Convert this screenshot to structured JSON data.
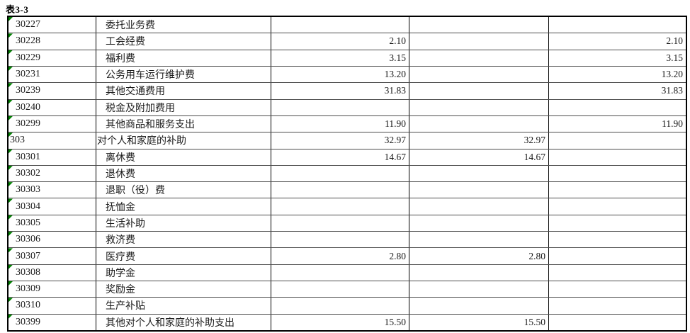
{
  "page": {
    "title": "表3-3"
  },
  "colors": {
    "outer_border": "#000000",
    "inner_row_line": "#4d4d4d",
    "error_indicator_green": "#008000",
    "background": "#ffffff"
  },
  "icons": {
    "error_indicator": "cell-error-indicator-triangle"
  },
  "table": {
    "column_roles": [
      "科目编码",
      "科目名称",
      "金额1",
      "金额2",
      "金额3"
    ],
    "rows": [
      {
        "code": "30227",
        "label": "委托业务费",
        "indent": 1,
        "v1": "",
        "v2": "",
        "v3": ""
      },
      {
        "code": "30228",
        "label": "工会经费",
        "indent": 1,
        "v1": "2.10",
        "v2": "",
        "v3": "2.10"
      },
      {
        "code": "30229",
        "label": "福利费",
        "indent": 1,
        "v1": "3.15",
        "v2": "",
        "v3": "3.15"
      },
      {
        "code": "30231",
        "label": "公务用车运行维护费",
        "indent": 1,
        "v1": "13.20",
        "v2": "",
        "v3": "13.20"
      },
      {
        "code": "30239",
        "label": "其他交通费用",
        "indent": 1,
        "v1": "31.83",
        "v2": "",
        "v3": "31.83"
      },
      {
        "code": "30240",
        "label": "税金及附加费用",
        "indent": 1,
        "v1": "",
        "v2": "",
        "v3": ""
      },
      {
        "code": "30299",
        "label": "其他商品和服务支出",
        "indent": 1,
        "v1": "11.90",
        "v2": "",
        "v3": "11.90"
      },
      {
        "code": "303",
        "label": "对个人和家庭的补助",
        "indent": 0,
        "v1": "32.97",
        "v2": "32.97",
        "v3": ""
      },
      {
        "code": "30301",
        "label": "离休费",
        "indent": 1,
        "v1": "14.67",
        "v2": "14.67",
        "v3": ""
      },
      {
        "code": "30302",
        "label": "退休费",
        "indent": 1,
        "v1": "",
        "v2": "",
        "v3": ""
      },
      {
        "code": "30303",
        "label": "退职（役）费",
        "indent": 1,
        "v1": "",
        "v2": "",
        "v3": ""
      },
      {
        "code": "30304",
        "label": "抚恤金",
        "indent": 1,
        "v1": "",
        "v2": "",
        "v3": ""
      },
      {
        "code": "30305",
        "label": "生活补助",
        "indent": 1,
        "v1": "",
        "v2": "",
        "v3": ""
      },
      {
        "code": "30306",
        "label": "救济费",
        "indent": 1,
        "v1": "",
        "v2": "",
        "v3": ""
      },
      {
        "code": "30307",
        "label": "医疗费",
        "indent": 1,
        "v1": "2.80",
        "v2": "2.80",
        "v3": ""
      },
      {
        "code": "30308",
        "label": "助学金",
        "indent": 1,
        "v1": "",
        "v2": "",
        "v3": ""
      },
      {
        "code": "30309",
        "label": "奖励金",
        "indent": 1,
        "v1": "",
        "v2": "",
        "v3": ""
      },
      {
        "code": "30310",
        "label": "生产补贴",
        "indent": 1,
        "v1": "",
        "v2": "",
        "v3": ""
      },
      {
        "code": "30399",
        "label": "其他对个人和家庭的补助支出",
        "indent": 1,
        "v1": "15.50",
        "v2": "15.50",
        "v3": ""
      }
    ]
  }
}
